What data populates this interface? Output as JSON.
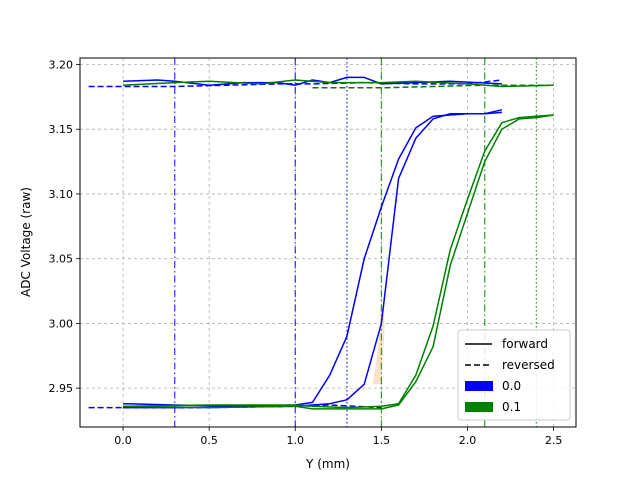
{
  "chart_data": {
    "type": "line",
    "title": "",
    "xlabel": "Y (mm)",
    "ylabel": "ADC Voltage (raw)",
    "xlim": [
      -0.25,
      2.63
    ],
    "ylim": [
      2.92,
      3.205
    ],
    "xticks": [
      "0.0",
      "0.5",
      "1.0",
      "1.5",
      "2.0",
      "2.5"
    ],
    "yticks": [
      "2.95",
      "3.00",
      "3.05",
      "3.10",
      "3.15",
      "3.20"
    ],
    "grid": true,
    "grid_style": "dashed",
    "legend": {
      "placement": "lower-right",
      "entries": [
        {
          "label": "forward",
          "kind": "line",
          "style": "solid",
          "color": "#000000"
        },
        {
          "label": "reversed",
          "kind": "line",
          "style": "dashed",
          "color": "#000000"
        },
        {
          "label": "0.0",
          "kind": "patch",
          "color": "#0000ff"
        },
        {
          "label": "0.1",
          "kind": "patch",
          "color": "#008000"
        }
      ]
    },
    "vlines": [
      {
        "x": 0.3,
        "color": "#0000ff",
        "style": "dashdot"
      },
      {
        "x": 1.0,
        "color": "#0000ff",
        "style": "dashdot"
      },
      {
        "x": 1.3,
        "color": "#0000ff",
        "style": "dotted"
      },
      {
        "x": 1.5,
        "color": "#008000",
        "style": "dashdot"
      },
      {
        "x": 2.1,
        "color": "#008000",
        "style": "dashdot"
      },
      {
        "x": 2.4,
        "color": "#008000",
        "style": "dotted"
      }
    ],
    "shaded_region": {
      "color": "#ffdab9",
      "x": [
        1.45,
        1.48,
        1.5,
        1.52,
        1.5
      ],
      "y": [
        2.953,
        2.98,
        3.02,
        3.0,
        2.953
      ]
    },
    "series": [
      {
        "group": "0.0",
        "color": "#0000ff",
        "style": "solid",
        "x": [
          0.0,
          0.3,
          1.0,
          1.1,
          1.2,
          1.3,
          1.4,
          1.5,
          1.6,
          1.7,
          1.8,
          1.9,
          2.0,
          2.1,
          2.2
        ],
        "y": [
          2.935,
          2.935,
          2.936,
          2.937,
          2.938,
          2.941,
          2.953,
          3.0,
          3.112,
          3.143,
          3.158,
          3.162,
          3.162,
          3.162,
          3.163
        ]
      },
      {
        "group": "0.0",
        "color": "#0000ff",
        "style": "solid",
        "x": [
          0.0,
          0.3,
          0.7,
          1.0,
          1.1,
          1.2,
          1.3,
          1.4,
          1.5,
          1.6,
          1.7,
          1.8,
          1.9,
          2.0,
          2.1,
          2.2
        ],
        "y": [
          2.938,
          2.937,
          2.936,
          2.937,
          2.939,
          2.96,
          2.99,
          3.05,
          3.09,
          3.127,
          3.151,
          3.16,
          3.161,
          3.162,
          3.162,
          3.165
        ]
      },
      {
        "group": "0.0",
        "color": "#0000ff",
        "style": "solid",
        "x": [
          0.0,
          0.2,
          0.3,
          0.5,
          0.7,
          0.9,
          1.0,
          1.1,
          1.2,
          1.3,
          1.4,
          1.5,
          1.7,
          1.9,
          2.2
        ],
        "y": [
          3.187,
          3.188,
          3.187,
          3.184,
          3.186,
          3.186,
          3.184,
          3.188,
          3.186,
          3.19,
          3.19,
          3.185,
          3.186,
          3.187,
          3.185
        ]
      },
      {
        "group": "0.0",
        "color": "#0000ff",
        "style": "dashed",
        "x": [
          -0.2,
          0.0,
          0.3,
          0.6,
          0.9,
          1.1,
          1.4,
          1.7,
          2.0,
          2.2
        ],
        "y": [
          3.183,
          3.183,
          3.183,
          3.184,
          3.185,
          3.185,
          3.186,
          3.185,
          3.185,
          3.188
        ]
      },
      {
        "group": "0.0",
        "color": "#0000ff",
        "style": "dashed",
        "x": [
          -0.2,
          0.0,
          0.5,
          1.0,
          1.2,
          1.5
        ],
        "y": [
          2.935,
          2.935,
          2.935,
          2.936,
          2.937,
          2.935
        ]
      },
      {
        "group": "0.1",
        "color": "#008000",
        "style": "solid",
        "x": [
          0.0,
          0.5,
          1.0,
          1.1,
          1.3,
          1.5,
          1.6,
          1.7,
          1.8,
          1.9,
          2.0,
          2.1,
          2.2,
          2.3,
          2.4,
          2.5
        ],
        "y": [
          2.936,
          2.937,
          2.937,
          2.936,
          2.935,
          2.936,
          2.938,
          2.96,
          2.998,
          3.057,
          3.096,
          3.133,
          3.155,
          3.159,
          3.16,
          3.161
        ]
      },
      {
        "group": "0.1",
        "color": "#008000",
        "style": "solid",
        "x": [
          0.0,
          0.5,
          1.0,
          1.1,
          1.3,
          1.5,
          1.6,
          1.7,
          1.8,
          1.9,
          2.0,
          2.1,
          2.2,
          2.3,
          2.4,
          2.5
        ],
        "y": [
          2.936,
          2.935,
          2.936,
          2.934,
          2.934,
          2.934,
          2.937,
          2.955,
          2.982,
          3.045,
          3.085,
          3.125,
          3.15,
          3.158,
          3.159,
          3.161
        ]
      },
      {
        "group": "0.1",
        "color": "#008000",
        "style": "solid",
        "x": [
          0.0,
          0.3,
          0.5,
          0.8,
          1.0,
          1.2,
          1.5,
          1.7,
          2.0,
          2.2,
          2.5
        ],
        "y": [
          3.184,
          3.186,
          3.187,
          3.185,
          3.188,
          3.186,
          3.186,
          3.187,
          3.185,
          3.183,
          3.184
        ]
      },
      {
        "group": "0.1",
        "color": "#008000",
        "style": "dashed",
        "x": [
          1.1,
          1.5,
          1.8,
          2.1,
          2.3,
          2.5
        ],
        "y": [
          3.182,
          3.182,
          3.183,
          3.184,
          3.184,
          3.184
        ]
      }
    ]
  }
}
